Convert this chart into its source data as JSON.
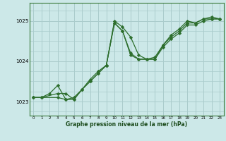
{
  "title": "Graphe pression niveau de la mer (hPa)",
  "bg_color": "#cce8e8",
  "grid_color": "#aacccc",
  "line_color": "#2d6e2d",
  "marker_color": "#2d6e2d",
  "xlim": [
    -0.5,
    23.5
  ],
  "ylim": [
    1022.65,
    1025.45
  ],
  "yticks": [
    1023,
    1024,
    1025
  ],
  "xticks": [
    0,
    1,
    2,
    3,
    4,
    5,
    6,
    7,
    8,
    9,
    10,
    11,
    12,
    13,
    14,
    15,
    16,
    17,
    18,
    19,
    20,
    21,
    22,
    23
  ],
  "series": [
    {
      "x": [
        0,
        1,
        2,
        3,
        4,
        5,
        6,
        7,
        8,
        9,
        10,
        11,
        12,
        13,
        14,
        15,
        16,
        17,
        18,
        19,
        20,
        21,
        22,
        23
      ],
      "y": [
        1023.1,
        1023.1,
        1023.2,
        1023.4,
        1023.05,
        1023.1,
        1023.3,
        1023.55,
        1023.75,
        1023.9,
        1025.0,
        1024.85,
        1024.6,
        1024.15,
        1024.05,
        1024.1,
        1024.4,
        1024.65,
        1024.8,
        1025.0,
        1024.95,
        1025.05,
        1025.1,
        1025.05
      ]
    },
    {
      "x": [
        0,
        1,
        3,
        4,
        5,
        6,
        7,
        8,
        9,
        10,
        11,
        12,
        13,
        14,
        15,
        16,
        17,
        18,
        19,
        20,
        21,
        22,
        23
      ],
      "y": [
        1023.1,
        1023.1,
        1023.1,
        1023.05,
        1023.05,
        1023.3,
        1023.5,
        1023.7,
        1023.9,
        1024.95,
        1024.75,
        1024.2,
        1024.05,
        1024.05,
        1024.05,
        1024.4,
        1024.6,
        1024.75,
        1024.95,
        1024.95,
        1025.05,
        1025.05,
        1025.05
      ]
    },
    {
      "x": [
        0,
        1,
        3,
        4,
        5,
        6,
        7,
        8,
        9,
        10,
        11,
        12,
        13,
        14,
        15,
        16,
        17,
        18,
        19,
        20,
        21,
        22,
        23
      ],
      "y": [
        1023.1,
        1023.1,
        1023.2,
        1023.2,
        1023.05,
        1023.3,
        1023.5,
        1023.7,
        1023.9,
        1024.95,
        1024.75,
        1024.15,
        1024.05,
        1024.05,
        1024.05,
        1024.35,
        1024.55,
        1024.7,
        1024.9,
        1024.9,
        1025.0,
        1025.05,
        1025.05
      ]
    }
  ]
}
